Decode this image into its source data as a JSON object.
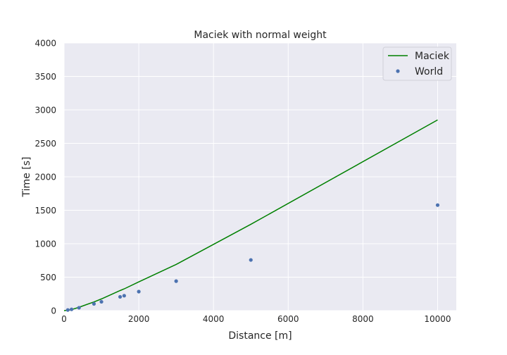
{
  "chart_data": {
    "type": "line",
    "title": "Maciek with normal weight",
    "xlabel": "Distance [m]",
    "ylabel": "Time [s]",
    "xlim": [
      0,
      10500
    ],
    "ylim": [
      0,
      4000
    ],
    "xticks": [
      0,
      2000,
      4000,
      6000,
      8000,
      10000
    ],
    "yticks": [
      0,
      500,
      1000,
      1500,
      2000,
      2500,
      3000,
      3500,
      4000
    ],
    "grid": true,
    "legend_position": "top-right",
    "series": [
      {
        "name": "Maciek",
        "kind": "line",
        "color": "#008000",
        "x": [
          0,
          100,
          200,
          400,
          800,
          1000,
          1500,
          1609,
          2000,
          3000,
          5000,
          10000
        ],
        "y": [
          0,
          5,
          15,
          50,
          130,
          175,
          300,
          325,
          430,
          690,
          1290,
          2850
        ]
      },
      {
        "name": "World",
        "kind": "scatter",
        "color": "#4c72b0",
        "x": [
          100,
          200,
          400,
          800,
          1000,
          1500,
          1609,
          2000,
          3000,
          5000,
          10000
        ],
        "y": [
          9.6,
          19.2,
          43,
          101,
          132,
          206,
          223,
          284,
          441,
          757,
          1577
        ]
      }
    ]
  }
}
